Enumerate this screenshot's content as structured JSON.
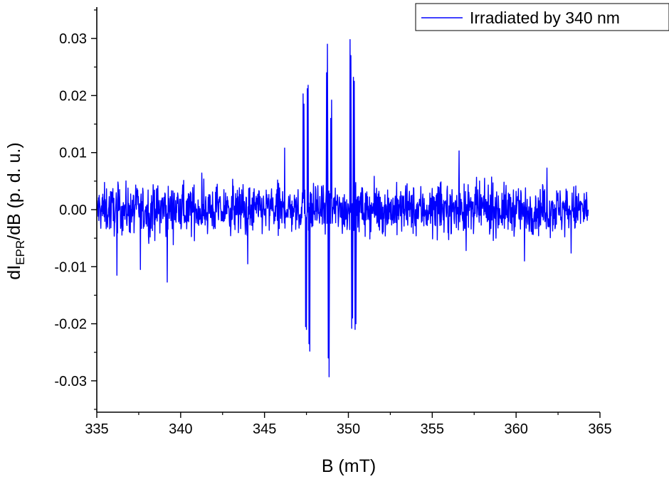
{
  "chart_data": {
    "type": "line",
    "title": "",
    "xlabel": "B (mT)",
    "ylabel": {
      "main": "dI",
      "sub": "EPR",
      "rest": "/dB (p. d. u.)"
    },
    "xlim": [
      335,
      365
    ],
    "ylim": [
      -0.0355,
      0.0355
    ],
    "xticks": [
      335,
      340,
      345,
      350,
      355,
      360,
      365
    ],
    "xtick_labels": [
      "335",
      "340",
      "345",
      "350",
      "355",
      "360",
      "365"
    ],
    "yticks": [
      0.03,
      0.02,
      0.01,
      0.0,
      -0.01,
      -0.02,
      -0.03
    ],
    "ytick_labels": [
      "0.03",
      "0.02",
      "0.01",
      "0.00",
      "-0.01",
      "-0.02",
      "-0.03"
    ],
    "grid": false,
    "legend_position": "top-right",
    "series": [
      {
        "name": "Irradiated by 340 nm",
        "color": "#0000ff",
        "x_range": [
          335.0,
          364.3
        ],
        "noise_amplitude": 0.004,
        "sample_x": [
          335.0,
          336.2,
          337.6,
          339.2,
          342.4,
          344.0,
          346.2,
          347.3,
          347.5,
          347.6,
          347.7,
          348.6,
          348.75,
          348.85,
          349.0,
          350.1,
          350.2,
          350.3,
          350.4,
          351.0,
          354.0,
          356.6,
          360.5,
          364.3
        ],
        "sample_y": [
          0.0,
          -0.0115,
          -0.0105,
          -0.0127,
          0.0,
          -0.0095,
          0.0108,
          0.0203,
          -0.021,
          0.0218,
          -0.0248,
          0.0,
          0.029,
          -0.0293,
          0.0192,
          0.0298,
          -0.0208,
          0.0232,
          -0.021,
          -0.0047,
          0.0,
          0.0103,
          -0.009,
          0.0
        ]
      }
    ]
  }
}
